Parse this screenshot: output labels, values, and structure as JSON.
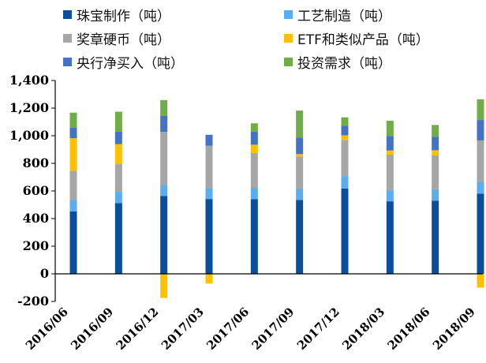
{
  "chart_data": {
    "type": "bar",
    "stacked": true,
    "title": "",
    "xlabel": "",
    "ylabel": "",
    "ylim": [
      -200,
      1400
    ],
    "yticks": [
      -200,
      0,
      200,
      400,
      600,
      800,
      1000,
      1200,
      1400
    ],
    "ytick_labels": [
      "-200",
      "0",
      "200",
      "400",
      "600",
      "800",
      "1,000",
      "1,200",
      "1,400"
    ],
    "grid": false,
    "legend_position": "top",
    "categories": [
      "2016/06",
      "2016/09",
      "2016/12",
      "2017/03",
      "2017/06",
      "2017/09",
      "2017/12",
      "2018/03",
      "2018/06",
      "2018/09"
    ],
    "series": [
      {
        "name": "珠宝制作（吨）",
        "color": "#0b4f9c",
        "values": [
          452,
          512,
          563,
          542,
          540,
          535,
          618,
          525,
          530,
          581
        ]
      },
      {
        "name": "工艺制造（吨）",
        "color": "#5aaef0",
        "values": [
          82,
          82,
          80,
          80,
          80,
          82,
          90,
          80,
          82,
          85
        ]
      },
      {
        "name": "奖章硬币（吨）",
        "color": "#a6a6a6",
        "values": [
          213,
          200,
          385,
          305,
          255,
          232,
          260,
          258,
          245,
          300
        ]
      },
      {
        "name": "ETF和类似产品（吨）",
        "color": "#ffc000",
        "values": [
          235,
          145,
          -175,
          -70,
          60,
          18,
          35,
          30,
          38,
          -100
        ]
      },
      {
        "name": "央行净买入（吨）",
        "color": "#4472c4",
        "values": [
          75,
          90,
          115,
          80,
          95,
          120,
          70,
          105,
          98,
          148
        ]
      },
      {
        "name": "投资需求（吨）",
        "color": "#70ad47",
        "values": [
          110,
          145,
          115,
          0,
          60,
          195,
          60,
          110,
          85,
          150
        ]
      }
    ]
  }
}
